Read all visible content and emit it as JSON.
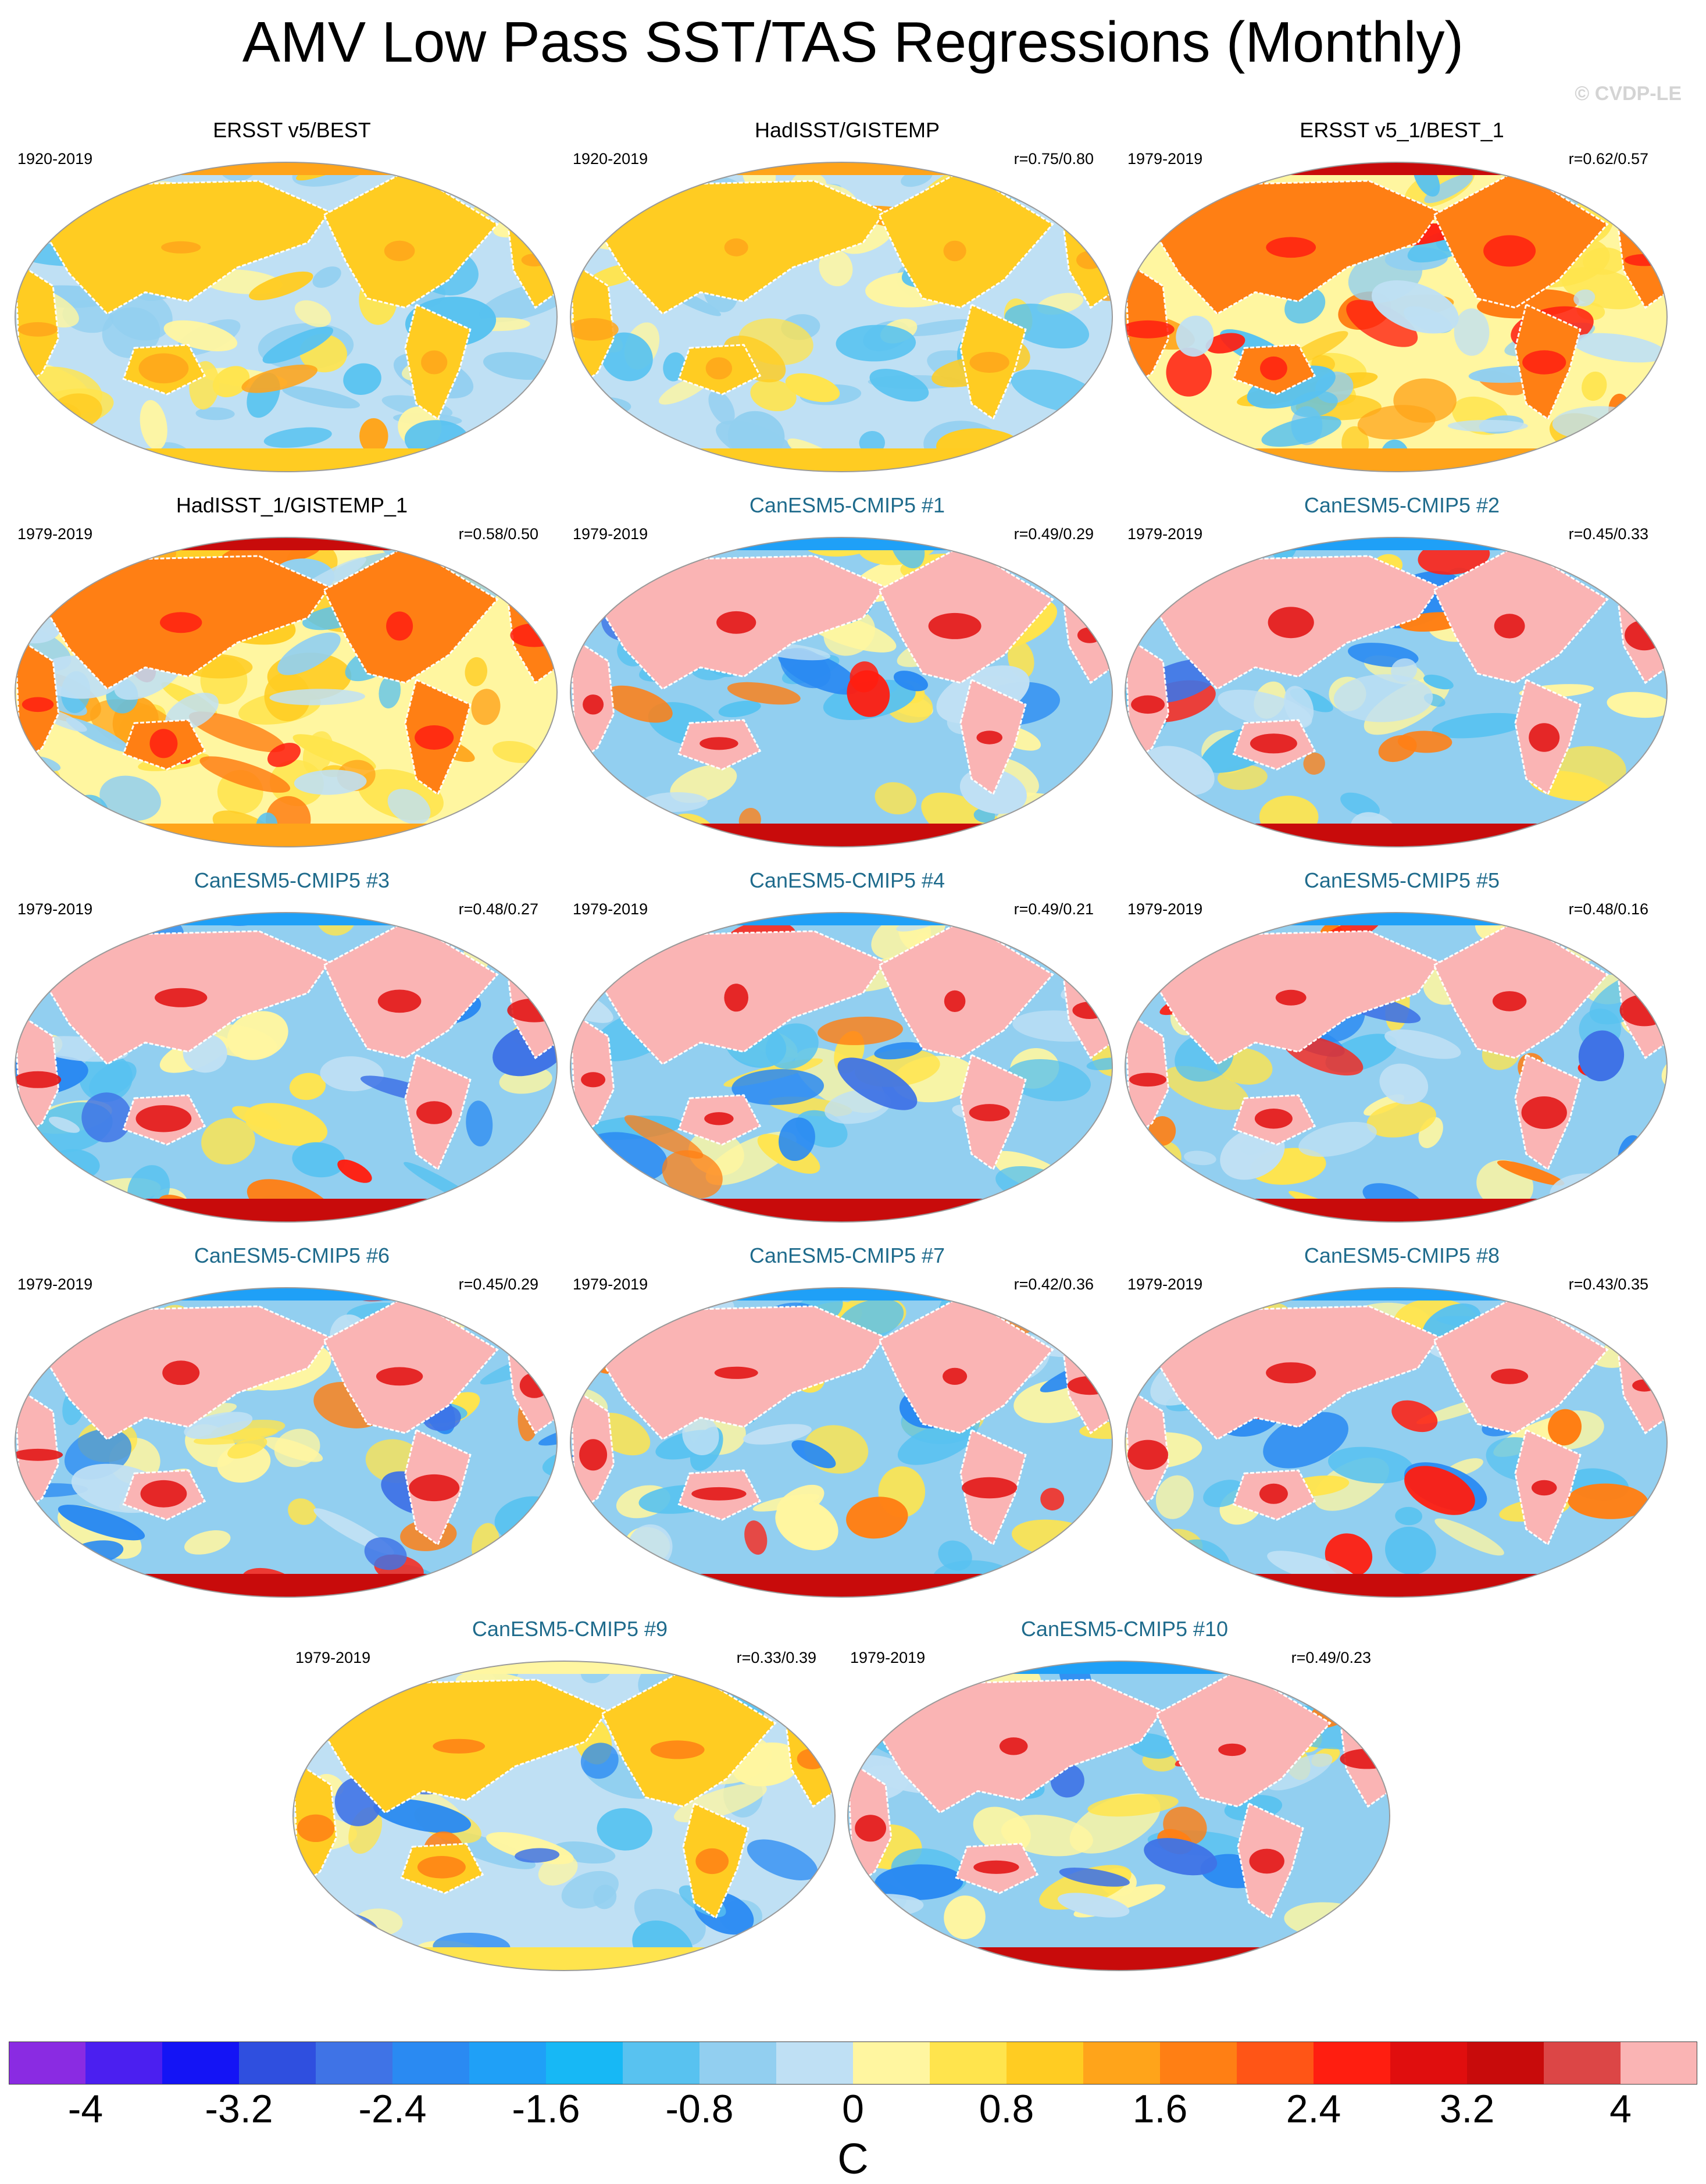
{
  "title": "AMV Low Pass SST/TAS Regressions (Monthly)",
  "credit": "© CVDP-LE",
  "panels": [
    {
      "title": "ERSST v5/BEST",
      "years": "1920-2019",
      "corr": "",
      "kind": "obs",
      "scheme": "obs"
    },
    {
      "title": "HadISST/GISTEMP",
      "years": "1920-2019",
      "corr": "r=0.75/0.80",
      "kind": "obs",
      "scheme": "obs"
    },
    {
      "title": "ERSST v5_1/BEST_1",
      "years": "1979-2019",
      "corr": "r=0.62/0.57",
      "kind": "obs",
      "scheme": "warm"
    },
    {
      "title": "HadISST_1/GISTEMP_1",
      "years": "1979-2019",
      "corr": "r=0.58/0.50",
      "kind": "obs",
      "scheme": "warm"
    },
    {
      "title": "CanESM5-CMIP5 #1",
      "years": "1979-2019",
      "corr": "r=0.49/0.29",
      "kind": "model",
      "scheme": "model"
    },
    {
      "title": "CanESM5-CMIP5 #2",
      "years": "1979-2019",
      "corr": "r=0.45/0.33",
      "kind": "model",
      "scheme": "model"
    },
    {
      "title": "CanESM5-CMIP5 #3",
      "years": "1979-2019",
      "corr": "r=0.48/0.27",
      "kind": "model",
      "scheme": "model"
    },
    {
      "title": "CanESM5-CMIP5 #4",
      "years": "1979-2019",
      "corr": "r=0.49/0.21",
      "kind": "model",
      "scheme": "model"
    },
    {
      "title": "CanESM5-CMIP5 #5",
      "years": "1979-2019",
      "corr": "r=0.48/0.16",
      "kind": "model",
      "scheme": "model"
    },
    {
      "title": "CanESM5-CMIP5 #6",
      "years": "1979-2019",
      "corr": "r=0.45/0.29",
      "kind": "model",
      "scheme": "model"
    },
    {
      "title": "CanESM5-CMIP5 #7",
      "years": "1979-2019",
      "corr": "r=0.42/0.36",
      "kind": "model",
      "scheme": "model"
    },
    {
      "title": "CanESM5-CMIP5 #8",
      "years": "1979-2019",
      "corr": "r=0.43/0.35",
      "kind": "model",
      "scheme": "model"
    },
    {
      "title": "CanESM5-CMIP5 #9",
      "years": "1979-2019",
      "corr": "r=0.33/0.39",
      "kind": "model",
      "scheme": "cool"
    },
    {
      "title": "CanESM5-CMIP5 #10",
      "years": "1979-2019",
      "corr": "r=0.49/0.23",
      "kind": "model",
      "scheme": "model"
    }
  ],
  "colorbar": {
    "unit": "C",
    "labels": [
      "-4",
      "-3.2",
      "-2.4",
      "-1.6",
      "-0.8",
      "0",
      "0.8",
      "1.6",
      "2.4",
      "3.2",
      "4"
    ],
    "colors": [
      "#8a2be2",
      "#4b1ff0",
      "#1414f5",
      "#2f4fdf",
      "#3f73e6",
      "#2a8af2",
      "#1fa0f7",
      "#17b8f5",
      "#58c2f0",
      "#92cff0",
      "#bfe0f4",
      "#fff6a0",
      "#ffe44d",
      "#ffcc22",
      "#ffa41a",
      "#ff7f14",
      "#ff5516",
      "#ff1e10",
      "#e00e0e",
      "#c80b0b",
      "#dc4646",
      "#fab4b4"
    ]
  },
  "colors": {
    "model_title": "#1f6b8c",
    "coast": "#ffffff",
    "credit": "#d4d4d4"
  }
}
